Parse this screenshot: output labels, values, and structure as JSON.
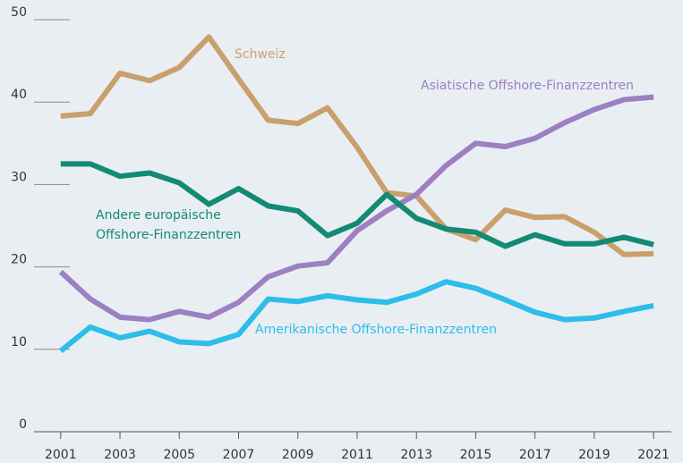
{
  "chart_data": {
    "type": "line",
    "x": [
      2001,
      2002,
      2003,
      2004,
      2005,
      2006,
      2007,
      2008,
      2009,
      2010,
      2011,
      2012,
      2013,
      2014,
      2015,
      2016,
      2017,
      2018,
      2019,
      2020,
      2021
    ],
    "series": [
      {
        "name": "Schweiz",
        "color": "#c9a06c",
        "values": [
          38.3,
          38.6,
          43.5,
          42.6,
          44.2,
          47.9,
          42.8,
          37.8,
          37.4,
          39.3,
          34.5,
          29.0,
          28.6,
          24.6,
          23.3,
          26.9,
          26.0,
          26.1,
          24.2,
          21.5,
          21.6
        ]
      },
      {
        "name": "Asiatische Offshore-Finanzzentren",
        "color": "#9c80c2",
        "values": [
          19.4,
          16.1,
          13.9,
          13.6,
          14.6,
          13.9,
          15.7,
          18.8,
          20.1,
          20.5,
          24.4,
          26.8,
          28.8,
          32.3,
          35.0,
          34.6,
          35.6,
          37.5,
          39.1,
          40.3,
          40.6
        ]
      },
      {
        "name": "Andere europäische Offshore-Finanzzentren",
        "color": "#138a74",
        "values": [
          32.5,
          32.5,
          31.0,
          31.4,
          30.2,
          27.6,
          29.5,
          27.4,
          26.8,
          23.8,
          25.3,
          28.8,
          25.9,
          24.6,
          24.2,
          22.5,
          23.9,
          22.8,
          22.8,
          23.6,
          22.7
        ]
      },
      {
        "name": "Amerikanische Offshore-Finanzzentren",
        "color": "#2dbde9",
        "values": [
          9.8,
          12.7,
          11.4,
          12.2,
          10.9,
          10.7,
          11.8,
          16.1,
          15.8,
          16.5,
          16.0,
          15.7,
          16.7,
          18.2,
          17.4,
          16.0,
          14.5,
          13.6,
          13.8,
          14.6,
          15.3
        ]
      }
    ],
    "xlim": [
      2000.1,
      2021.6
    ],
    "xticks": [
      2001,
      2003,
      2005,
      2007,
      2009,
      2011,
      2013,
      2015,
      2017,
      2019,
      2021
    ],
    "ylim": [
      0,
      50
    ],
    "yticks": [
      0,
      10,
      20,
      30,
      40,
      50
    ]
  }
}
